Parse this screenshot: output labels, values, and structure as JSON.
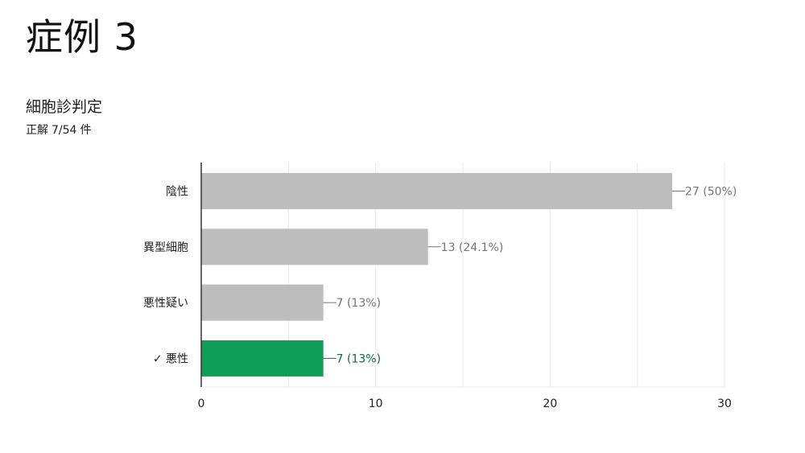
{
  "slide": {
    "title": "症例 3"
  },
  "question": {
    "title": "細胞診判定",
    "score_prefix": "正解",
    "score_value": "7/54",
    "score_unit": "件"
  },
  "colors": {
    "bar_default": "#bdbdbd",
    "bar_correct": "#0f9d58",
    "label_default": "#757575",
    "label_correct": "#0b6e3a",
    "grid": "#e8e8e8",
    "axis": "#333333"
  },
  "chart_data": {
    "type": "bar",
    "orientation": "horizontal",
    "categories": [
      "陰性",
      "異型細胞",
      "悪性疑い",
      "悪性"
    ],
    "values": [
      27,
      13,
      7,
      7
    ],
    "value_labels": [
      "27 (50%)",
      "13 (24.1%)",
      "7 (13%)",
      "7 (13%)"
    ],
    "correct": [
      false,
      false,
      false,
      true
    ],
    "correct_marker": "✓",
    "xlim": [
      0,
      30
    ],
    "xticks": [
      0,
      10,
      20,
      30
    ],
    "grid": true,
    "title": "",
    "xlabel": "",
    "ylabel": ""
  }
}
